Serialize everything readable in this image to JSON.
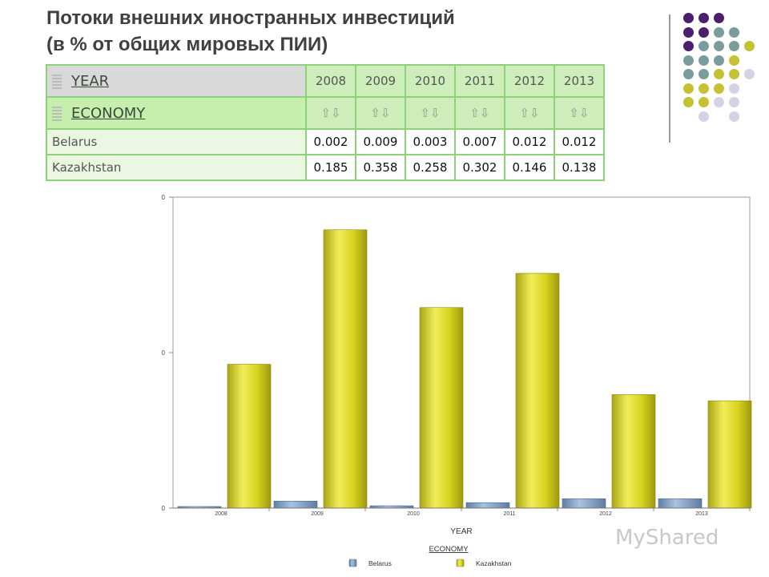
{
  "title": {
    "line1": "Потоки внешних иностранных инвестиций",
    "line2": "(в % от общих мировых ПИИ)"
  },
  "colors": {
    "purple": "#4b1e6e",
    "teal": "#7b9c9c",
    "olive": "#c4c232",
    "lavender": "#d5d3e3",
    "belarus": "#7d9ec4",
    "kazakhstan": "#d6d21c"
  },
  "pivot": {
    "year_label": "YEAR",
    "economy_label": "ECONOMY",
    "years": [
      "2008",
      "2009",
      "2010",
      "2011",
      "2012",
      "2013"
    ],
    "sort_icon": "⇧⇩",
    "rows": [
      {
        "name": "Belarus",
        "values": [
          "0.002",
          "0.009",
          "0.003",
          "0.007",
          "0.012",
          "0.012"
        ]
      },
      {
        "name": "Kazakhstan",
        "values": [
          "0.185",
          "0.358",
          "0.258",
          "0.302",
          "0.146",
          "0.138"
        ]
      }
    ]
  },
  "chart_data": {
    "type": "bar",
    "categories": [
      "2008",
      "2009",
      "2010",
      "2011",
      "2012",
      "2013"
    ],
    "series": [
      {
        "name": "Belarus",
        "values": [
          0.002,
          0.009,
          0.003,
          0.007,
          0.012,
          0.012
        ]
      },
      {
        "name": "Kazakhstan",
        "values": [
          0.185,
          0.358,
          0.258,
          0.302,
          0.146,
          0.138
        ]
      }
    ],
    "ytick_labels": [
      "0",
      "0",
      "0"
    ],
    "ylim": [
      0,
      0.4
    ],
    "xlabel": "YEAR",
    "legend_title": "ECONOMY",
    "legend_position": "bottom"
  },
  "watermark": "MyShared"
}
